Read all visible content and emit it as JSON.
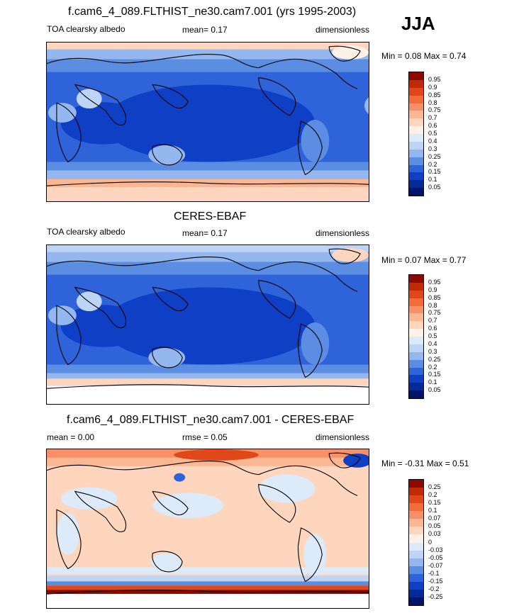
{
  "season": "JJA",
  "panels": [
    {
      "title": "f.cam6_4_089.FLTHIST_ne30.cam7.001 (yrs 1995-2003)",
      "left_label": "TOA clearsky albedo",
      "center_label": "mean=  0.17",
      "right_label": "dimensionless",
      "minmax": "Min =  0.08 Max =  0.74",
      "colorbar": {
        "labels": [
          "0.95",
          "0.9",
          "0.85",
          "0.8",
          "0.75",
          "0.7",
          "0.6",
          "0.5",
          "0.4",
          "0.3",
          "0.25",
          "0.2",
          "0.15",
          "0.1",
          "0.05"
        ],
        "colors": [
          "#8b0a00",
          "#c02a05",
          "#e0481a",
          "#f26b3a",
          "#f79067",
          "#fbb693",
          "#fdd6bd",
          "#fdf1e8",
          "#dceaf9",
          "#bdd4f4",
          "#93b7ee",
          "#5b8ee3",
          "#2f63d9",
          "#0f3fc4",
          "#052a95",
          "#00136b"
        ]
      }
    },
    {
      "title": "CERES-EBAF",
      "left_label": "TOA clearsky albedo",
      "center_label": "mean=  0.17",
      "right_label": "dimensionless",
      "minmax": "Min =  0.07 Max =  0.77",
      "colorbar": {
        "labels": [
          "0.95",
          "0.9",
          "0.85",
          "0.8",
          "0.75",
          "0.7",
          "0.6",
          "0.5",
          "0.4",
          "0.3",
          "0.25",
          "0.2",
          "0.15",
          "0.1",
          "0.05"
        ],
        "colors": [
          "#8b0a00",
          "#c02a05",
          "#e0481a",
          "#f26b3a",
          "#f79067",
          "#fbb693",
          "#fdd6bd",
          "#fdf1e8",
          "#dceaf9",
          "#bdd4f4",
          "#93b7ee",
          "#5b8ee3",
          "#2f63d9",
          "#0f3fc4",
          "#052a95",
          "#00136b"
        ]
      }
    },
    {
      "title": "f.cam6_4_089.FLTHIST_ne30.cam7.001 - CERES-EBAF",
      "left_label": "mean =  0.00",
      "center_label": "rmse =  0.05",
      "right_label": "dimensionless",
      "minmax": "Min =  -0.31 Max =  0.51",
      "colorbar": {
        "labels": [
          "0.25",
          "0.2",
          "0.15",
          "0.1",
          "0.07",
          "0.05",
          "0.03",
          "0",
          "-0.03",
          "-0.05",
          "-0.07",
          "-0.1",
          "-0.15",
          "-0.2",
          "-0.25"
        ],
        "colors": [
          "#8b0a00",
          "#c02a05",
          "#e0481a",
          "#f26b3a",
          "#f79067",
          "#fbb693",
          "#fdd6bd",
          "#fdf1e8",
          "#dceaf9",
          "#bdd4f4",
          "#93b7ee",
          "#5b8ee3",
          "#2f63d9",
          "#0f3fc4",
          "#052a95",
          "#00136b"
        ]
      }
    }
  ]
}
